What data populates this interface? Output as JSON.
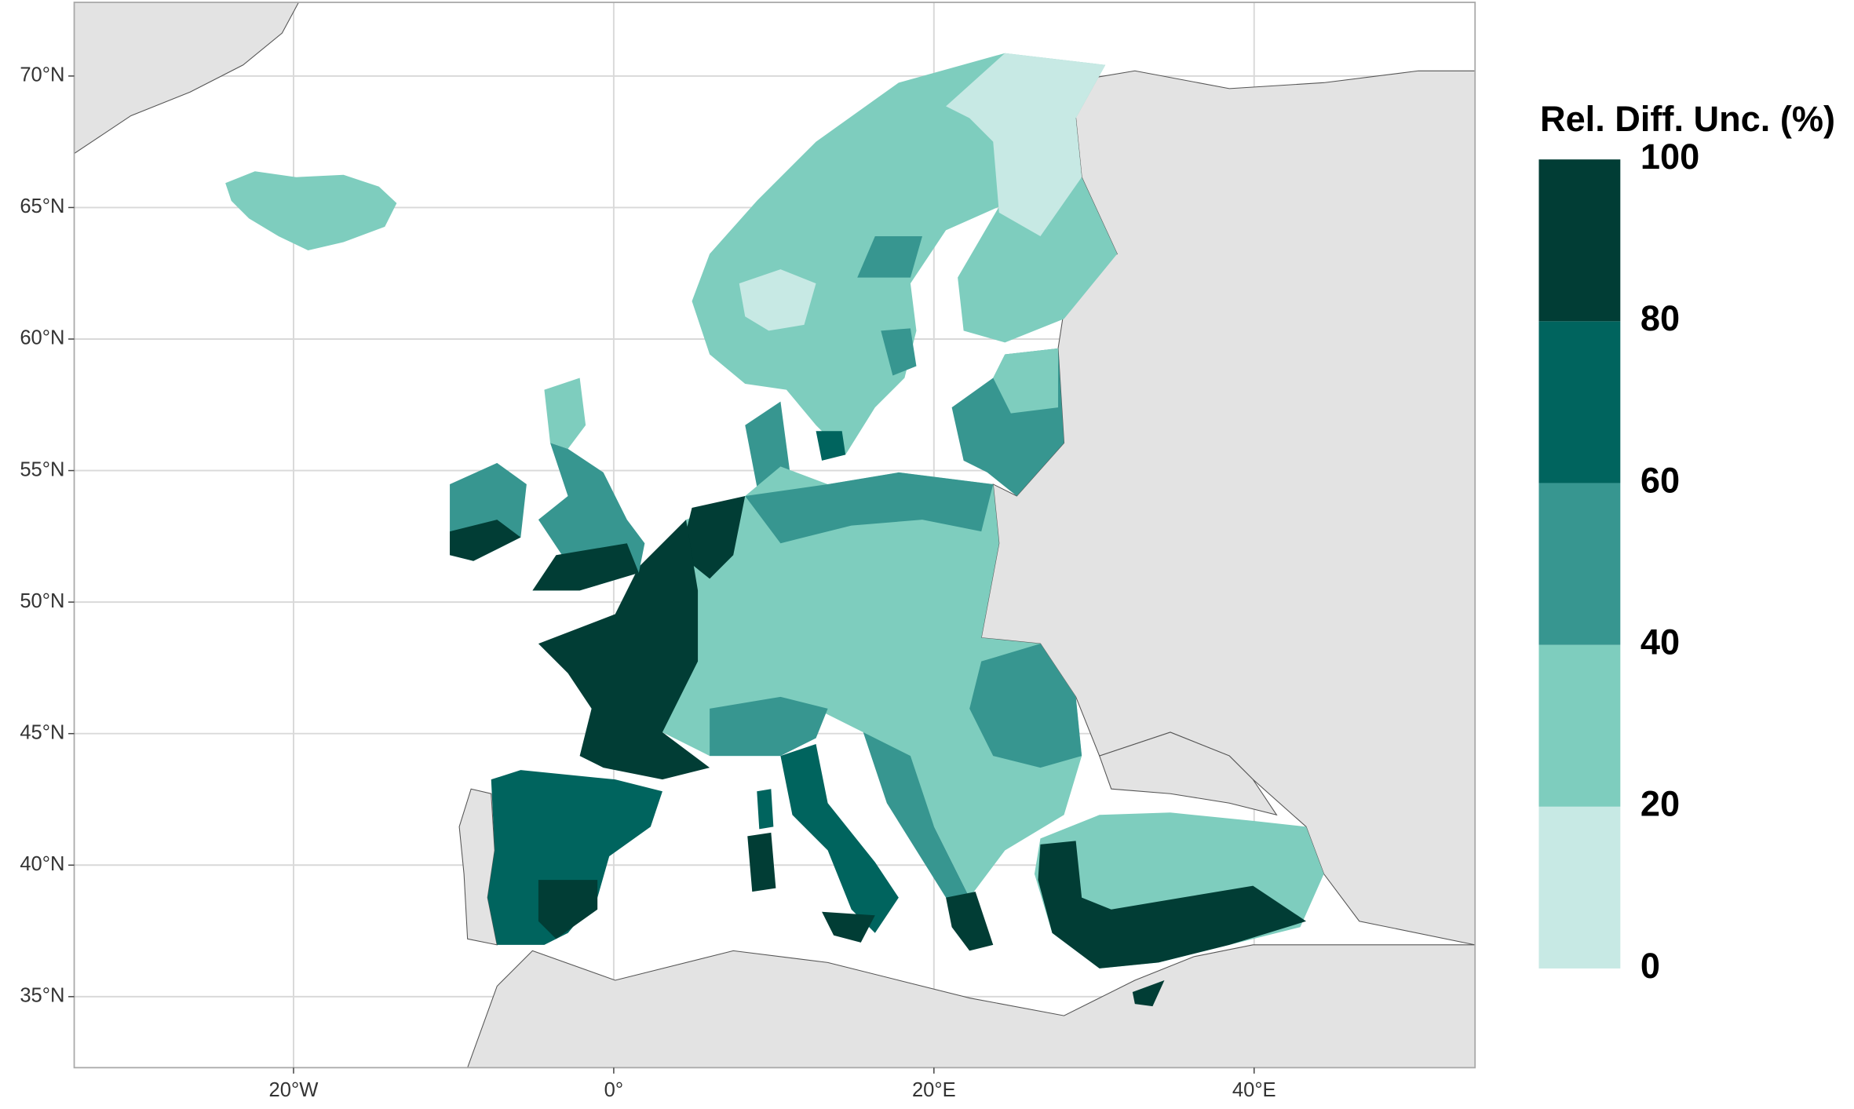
{
  "map": {
    "lonlim": [
      -33.7,
      53.8
    ],
    "latlim": [
      32.3,
      72.8
    ],
    "lon_ticks": [
      {
        "value": -20,
        "label": "20°W"
      },
      {
        "value": 0,
        "label": "0°"
      },
      {
        "value": 20,
        "label": "20°E"
      },
      {
        "value": 40,
        "label": "40°E"
      }
    ],
    "lat_ticks": [
      {
        "value": 35,
        "label": "35°N"
      },
      {
        "value": 40,
        "label": "40°N"
      },
      {
        "value": 45,
        "label": "45°N"
      },
      {
        "value": 50,
        "label": "50°N"
      },
      {
        "value": 55,
        "label": "55°N"
      },
      {
        "value": 60,
        "label": "60°N"
      },
      {
        "value": 65,
        "label": "65°N"
      },
      {
        "value": 70,
        "label": "70°N"
      }
    ],
    "legend": {
      "title": "Rel. Diff. Unc. (%)",
      "breaks": [
        0,
        20,
        40,
        60,
        80,
        100
      ],
      "colors": [
        "#c7e9e4",
        "#7ecdbe",
        "#379690",
        "#00645e",
        "#013d35"
      ]
    }
  }
}
